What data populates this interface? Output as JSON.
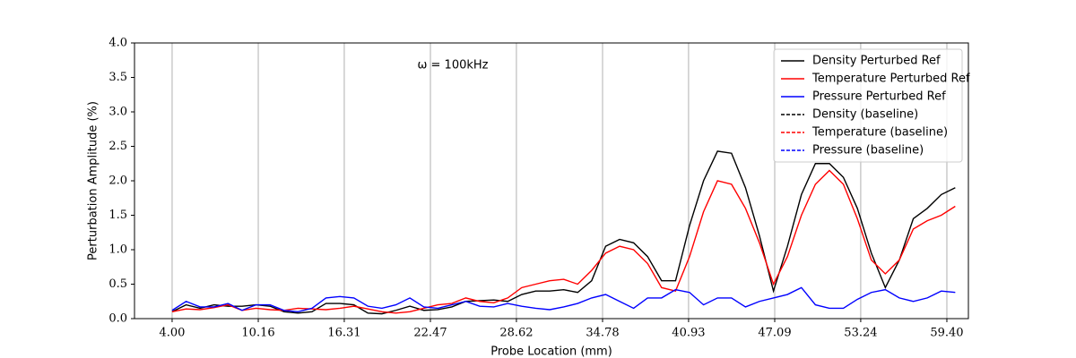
{
  "chart_data": {
    "type": "line",
    "xlabel": "Probe Location (mm)",
    "ylabel": "Perturbation Amplitude (%)",
    "annotation": "ω = 100kHz",
    "x": [
      4,
      5,
      6,
      7,
      8,
      9,
      10,
      11,
      12,
      13,
      14,
      15,
      16,
      17,
      18,
      19,
      20,
      21,
      22,
      23,
      24,
      25,
      26,
      27,
      28,
      29,
      30,
      31,
      32,
      33,
      34,
      35,
      36,
      37,
      38,
      39,
      40,
      41,
      42,
      43,
      44,
      45,
      46,
      47,
      48,
      49,
      50,
      51,
      52,
      53,
      54,
      55,
      56,
      57,
      58,
      59,
      60
    ],
    "series": [
      {
        "name": "Density Perturbed Ref",
        "color": "#000000",
        "linestyle": "solid",
        "values": [
          0.1,
          0.2,
          0.15,
          0.2,
          0.18,
          0.18,
          0.2,
          0.18,
          0.1,
          0.08,
          0.1,
          0.22,
          0.22,
          0.2,
          0.08,
          0.07,
          0.12,
          0.18,
          0.12,
          0.13,
          0.17,
          0.25,
          0.26,
          0.27,
          0.25,
          0.35,
          0.4,
          0.4,
          0.42,
          0.38,
          0.55,
          1.05,
          1.15,
          1.1,
          0.9,
          0.55,
          0.55,
          1.35,
          2.0,
          2.43,
          2.4,
          1.9,
          1.2,
          0.4,
          1.05,
          1.8,
          2.25,
          2.25,
          2.05,
          1.6,
          0.95,
          0.45,
          0.85,
          1.45,
          1.6,
          1.8,
          1.9
        ]
      },
      {
        "name": "Temperature Perturbed Ref",
        "color": "#ff0000",
        "linestyle": "solid",
        "values": [
          0.1,
          0.14,
          0.13,
          0.16,
          0.2,
          0.12,
          0.15,
          0.13,
          0.12,
          0.15,
          0.14,
          0.13,
          0.15,
          0.18,
          0.14,
          0.1,
          0.08,
          0.1,
          0.15,
          0.2,
          0.22,
          0.3,
          0.25,
          0.23,
          0.3,
          0.45,
          0.5,
          0.55,
          0.57,
          0.5,
          0.7,
          0.95,
          1.05,
          1.0,
          0.8,
          0.45,
          0.4,
          0.9,
          1.55,
          2.0,
          1.95,
          1.6,
          1.1,
          0.5,
          0.9,
          1.5,
          1.95,
          2.15,
          1.95,
          1.45,
          0.85,
          0.65,
          0.85,
          1.3,
          1.42,
          1.5,
          1.63
        ]
      },
      {
        "name": "Pressure Perturbed Ref",
        "color": "#0000ff",
        "linestyle": "solid",
        "values": [
          0.12,
          0.25,
          0.17,
          0.17,
          0.22,
          0.12,
          0.2,
          0.2,
          0.12,
          0.1,
          0.15,
          0.3,
          0.32,
          0.3,
          0.18,
          0.15,
          0.2,
          0.3,
          0.17,
          0.15,
          0.2,
          0.25,
          0.18,
          0.17,
          0.22,
          0.18,
          0.15,
          0.13,
          0.17,
          0.22,
          0.3,
          0.35,
          0.25,
          0.15,
          0.3,
          0.3,
          0.42,
          0.38,
          0.2,
          0.3,
          0.3,
          0.17,
          0.25,
          0.3,
          0.35,
          0.45,
          0.2,
          0.15,
          0.15,
          0.28,
          0.38,
          0.42,
          0.3,
          0.25,
          0.3,
          0.4,
          0.38
        ]
      },
      {
        "name": "Density (baseline)",
        "color": "#000000",
        "linestyle": "dashed",
        "values": [
          null,
          null,
          null,
          null,
          null,
          null,
          null,
          null,
          null,
          null,
          null,
          null,
          null,
          null,
          null,
          null,
          null,
          null,
          null,
          null,
          null,
          null,
          null,
          null,
          null,
          null,
          null,
          null,
          null,
          null,
          null,
          null,
          null,
          null,
          null,
          null,
          null,
          null,
          null,
          null,
          null,
          null,
          null,
          null,
          null,
          null,
          null,
          null,
          null,
          null,
          null,
          null,
          null,
          null,
          null,
          null,
          null
        ]
      },
      {
        "name": "Temperature (baseline)",
        "color": "#ff0000",
        "linestyle": "dashed",
        "values": [
          null,
          null,
          null,
          null,
          null,
          null,
          null,
          null,
          null,
          null,
          null,
          null,
          null,
          null,
          null,
          null,
          null,
          null,
          null,
          null,
          null,
          null,
          null,
          null,
          null,
          null,
          null,
          null,
          null,
          null,
          null,
          null,
          null,
          null,
          null,
          null,
          null,
          null,
          null,
          null,
          null,
          null,
          null,
          null,
          null,
          null,
          null,
          null,
          null,
          null,
          null,
          null,
          null,
          null,
          null,
          null,
          null
        ]
      },
      {
        "name": "Pressure (baseline)",
        "color": "#0000ff",
        "linestyle": "dashed",
        "values": [
          null,
          null,
          null,
          null,
          null,
          null,
          null,
          null,
          null,
          null,
          null,
          null,
          null,
          null,
          null,
          null,
          null,
          null,
          null,
          null,
          null,
          null,
          null,
          null,
          null,
          null,
          null,
          null,
          null,
          null,
          null,
          null,
          null,
          null,
          null,
          null,
          null,
          null,
          null,
          null,
          null,
          null,
          null,
          null,
          null,
          null,
          null,
          null,
          null,
          null,
          null,
          null,
          null,
          null,
          null,
          null,
          null
        ]
      }
    ],
    "xlim": [
      1.31,
      60.94
    ],
    "ylim": [
      0,
      4
    ],
    "xticks": [
      {
        "value": 4,
        "label": "4.00"
      },
      10.16,
      16.31,
      22.47,
      28.62,
      34.78,
      40.93,
      47.09,
      53.24,
      {
        "value": 59.4,
        "label": "59.40"
      }
    ],
    "yticks": [
      {
        "value": 0,
        "label": "0.0"
      },
      0.5,
      {
        "value": 1,
        "label": "1.0"
      },
      1.5,
      {
        "value": 2,
        "label": "2.0"
      },
      2.5,
      {
        "value": 3,
        "label": "3.0"
      },
      3.5,
      {
        "value": 4,
        "label": "4.0"
      }
    ],
    "grid": "x",
    "legend": "upper right"
  }
}
